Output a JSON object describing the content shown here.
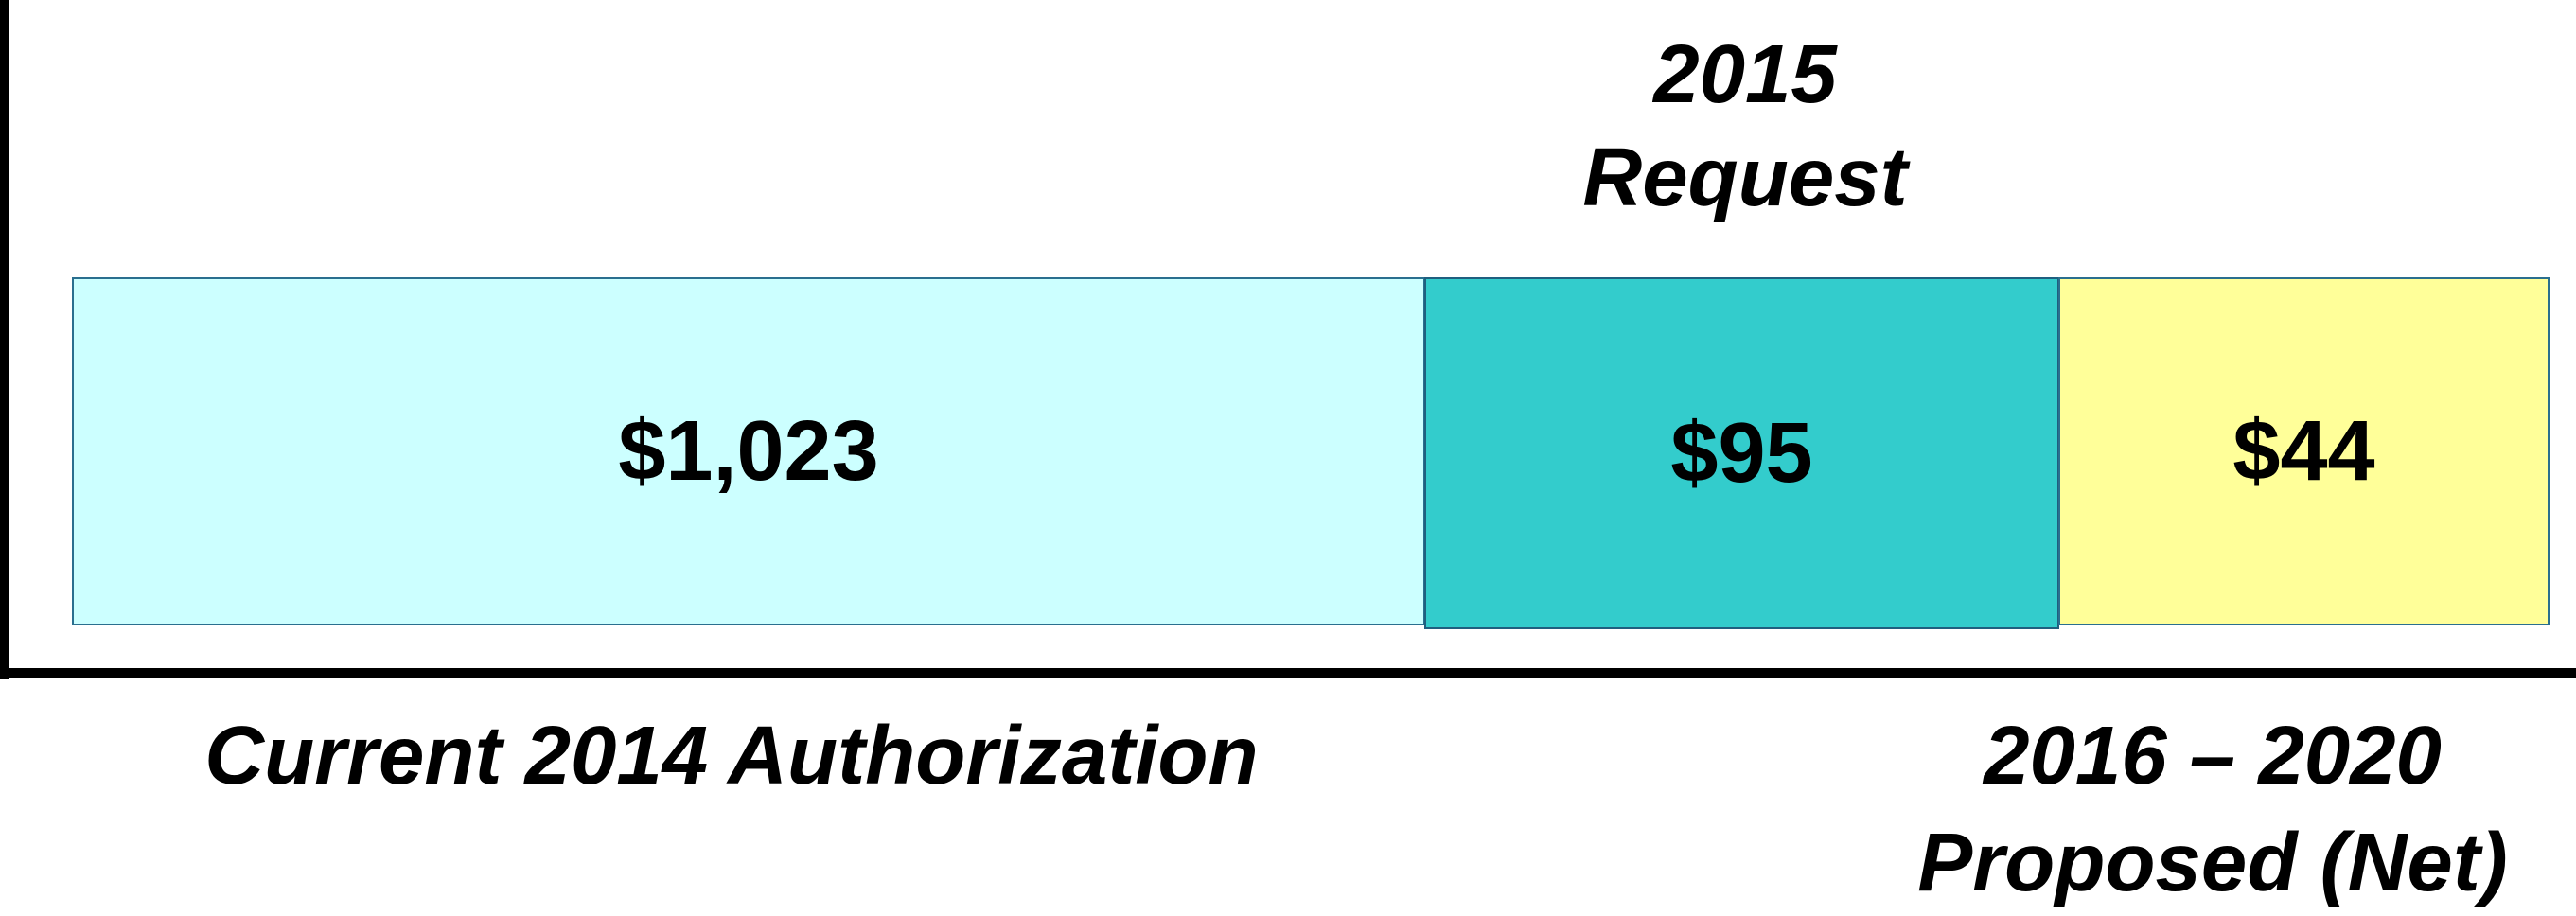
{
  "segments": [
    {
      "value": "$1,023",
      "label": "Current 2014 Authorization"
    },
    {
      "value": "$95",
      "label": "2015 Request"
    },
    {
      "value": "$44",
      "label": "2016 – 2020 Proposed (Net)"
    }
  ]
}
